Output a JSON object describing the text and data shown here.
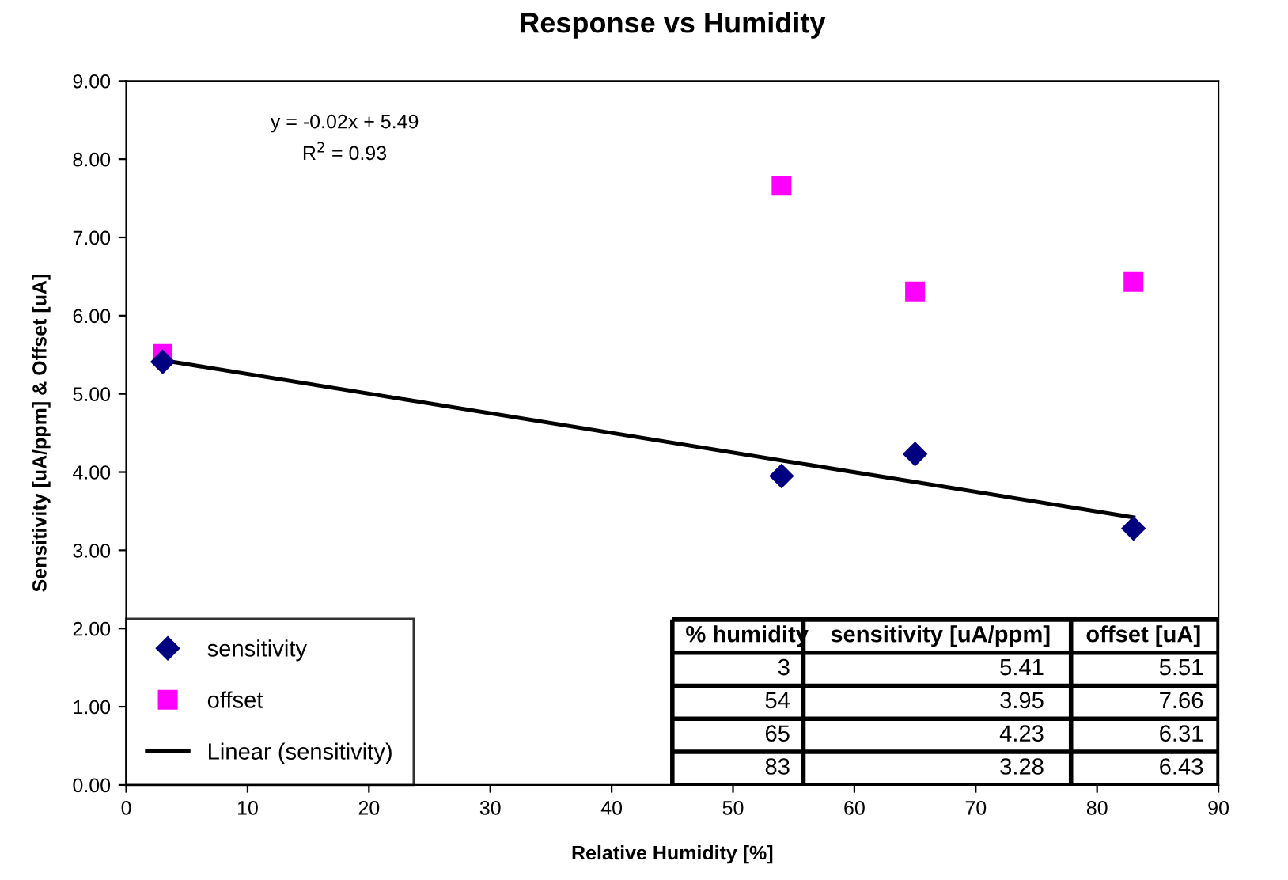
{
  "chart_data": {
    "type": "scatter",
    "title": "Response vs Humidity",
    "xlabel": "Relative Humidity [%]",
    "ylabel": "Sensitivity [uA/ppm] & Offset [uA]",
    "x": [
      3,
      54,
      65,
      83
    ],
    "series": [
      {
        "name": "sensitivity",
        "color": "#000080",
        "marker": "diamond",
        "values": [
          5.41,
          3.95,
          4.23,
          3.28
        ]
      },
      {
        "name": "offset",
        "color": "#ff00ff",
        "marker": "square",
        "values": [
          5.51,
          7.66,
          6.31,
          6.43
        ]
      },
      {
        "name": "Linear (sensitivity)",
        "type": "line",
        "color": "#000000",
        "marker": "none",
        "line_style": "solid",
        "x": [
          3,
          83
        ],
        "values": [
          5.43,
          3.42
        ]
      }
    ],
    "annotations": [
      "y = -0.02x + 5.49",
      "R$^{2}$ = 0.93",
      "% humidity",
      "sensitivity [uA/ppm]",
      "offset [uA]",
      "3",
      "5.41",
      "5.51",
      "54",
      "3.95",
      "7.66",
      "65",
      "4.23",
      "6.31",
      "83",
      "3.28",
      "6.43"
    ],
    "xlim": [
      0,
      90
    ],
    "xticks": [
      0,
      10,
      20,
      30,
      40,
      50,
      60,
      70,
      80,
      90
    ],
    "ylim": [
      0,
      9
    ],
    "yticks": [
      {
        "value": 0,
        "label": "0.00"
      },
      {
        "value": 1,
        "label": "1.00"
      },
      {
        "value": 2,
        "label": "2.00"
      },
      {
        "value": 3,
        "label": "3.00"
      },
      {
        "value": 4,
        "label": "4.00"
      },
      {
        "value": 5,
        "label": "5.00"
      },
      {
        "value": 6,
        "label": "6.00"
      },
      {
        "value": 7,
        "label": "7.00"
      },
      {
        "value": 8,
        "label": "8.00"
      },
      {
        "value": 9,
        "label": "9.00"
      }
    ],
    "grid": false,
    "legend": "bottom left"
  }
}
